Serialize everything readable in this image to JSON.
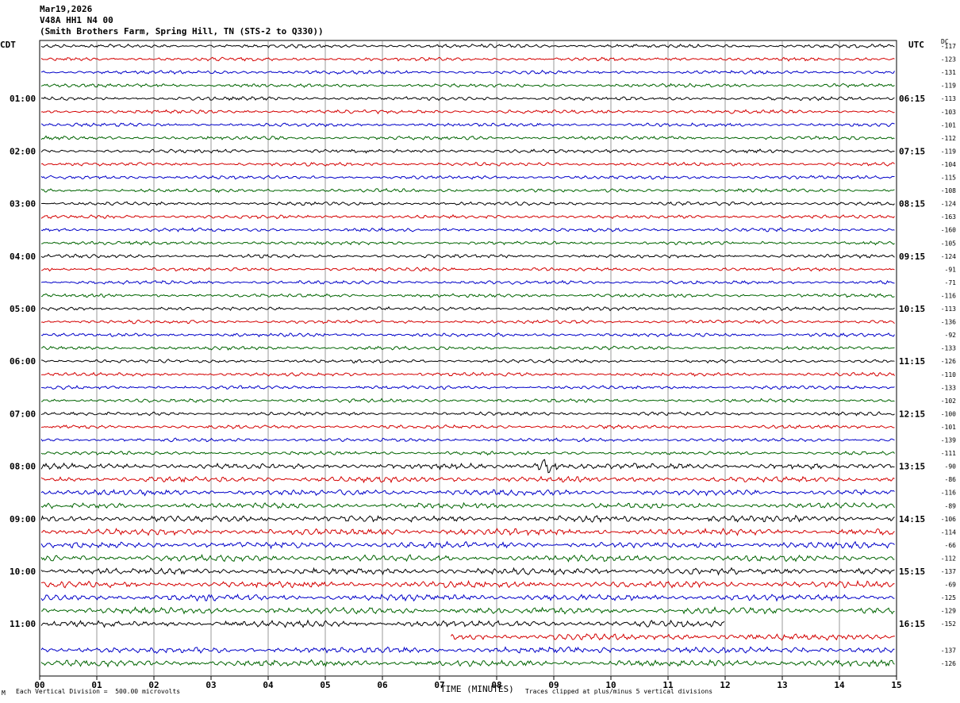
{
  "header": {
    "date": "Mar19,2026",
    "channel": "V48A HH1 N4 00",
    "site": "(Smith Brothers Farm, Spring Hill, TN (STS-2 to Q330))"
  },
  "left_axis_label": "CDT",
  "right_axis_label": "UTC",
  "dc_label": "DC",
  "footer": {
    "scale": "Each Vertical Division =  500.00 microvolts",
    "xlabel": "TIME (MINUTES)",
    "clip": "Traces clipped at plus/minus 5 vertical divisions",
    "corner": "M"
  },
  "colors": {
    "trace_cycle": [
      "#000000",
      "#d40000",
      "#0000c8",
      "#006400"
    ],
    "grid": "#808080"
  },
  "chart_data": {
    "type": "line",
    "subtype": "helicorder",
    "x_ticks": [
      "00",
      "01",
      "02",
      "03",
      "04",
      "05",
      "06",
      "07",
      "08",
      "09",
      "10",
      "11",
      "12",
      "13",
      "14",
      "15"
    ],
    "xlim": [
      0,
      15
    ],
    "rows_per_hour": 4,
    "left_hour_labels": [
      "01:00",
      "02:00",
      "03:00",
      "04:00",
      "05:00",
      "06:00",
      "07:00",
      "08:00",
      "09:00",
      "10:00",
      "11:00"
    ],
    "right_hour_labels": [
      "06:15",
      "07:15",
      "08:15",
      "09:15",
      "10:15",
      "11:15",
      "12:15",
      "13:15",
      "14:15",
      "15:15",
      "16:15"
    ],
    "dc_offsets": [
      "-117",
      "-123",
      "-131",
      "-119",
      "-113",
      "-103",
      "-101",
      "-112",
      "-119",
      "-104",
      "-115",
      "-108",
      "-124",
      "-163",
      "-160",
      "-105",
      "-124",
      "-91",
      "-71",
      "-116",
      "-113",
      "-136",
      "-92",
      "-133",
      "-126",
      "-110",
      "-133",
      "-102",
      "-100",
      "-101",
      "-139",
      "-111",
      "-90",
      "-86",
      "-116",
      "-89",
      "-106",
      "-114",
      "-66",
      "-112",
      "-137",
      "-69",
      "-125",
      "-129",
      "-152",
      "",
      "-137",
      "-126"
    ],
    "events": [
      {
        "row": 32,
        "start_min": 8.6,
        "end_min": 9.2,
        "amplitude": "high"
      }
    ],
    "gaps": [
      {
        "row": 44,
        "end_min": 12.0
      },
      {
        "row": 45,
        "start_min": 7.2
      }
    ]
  }
}
